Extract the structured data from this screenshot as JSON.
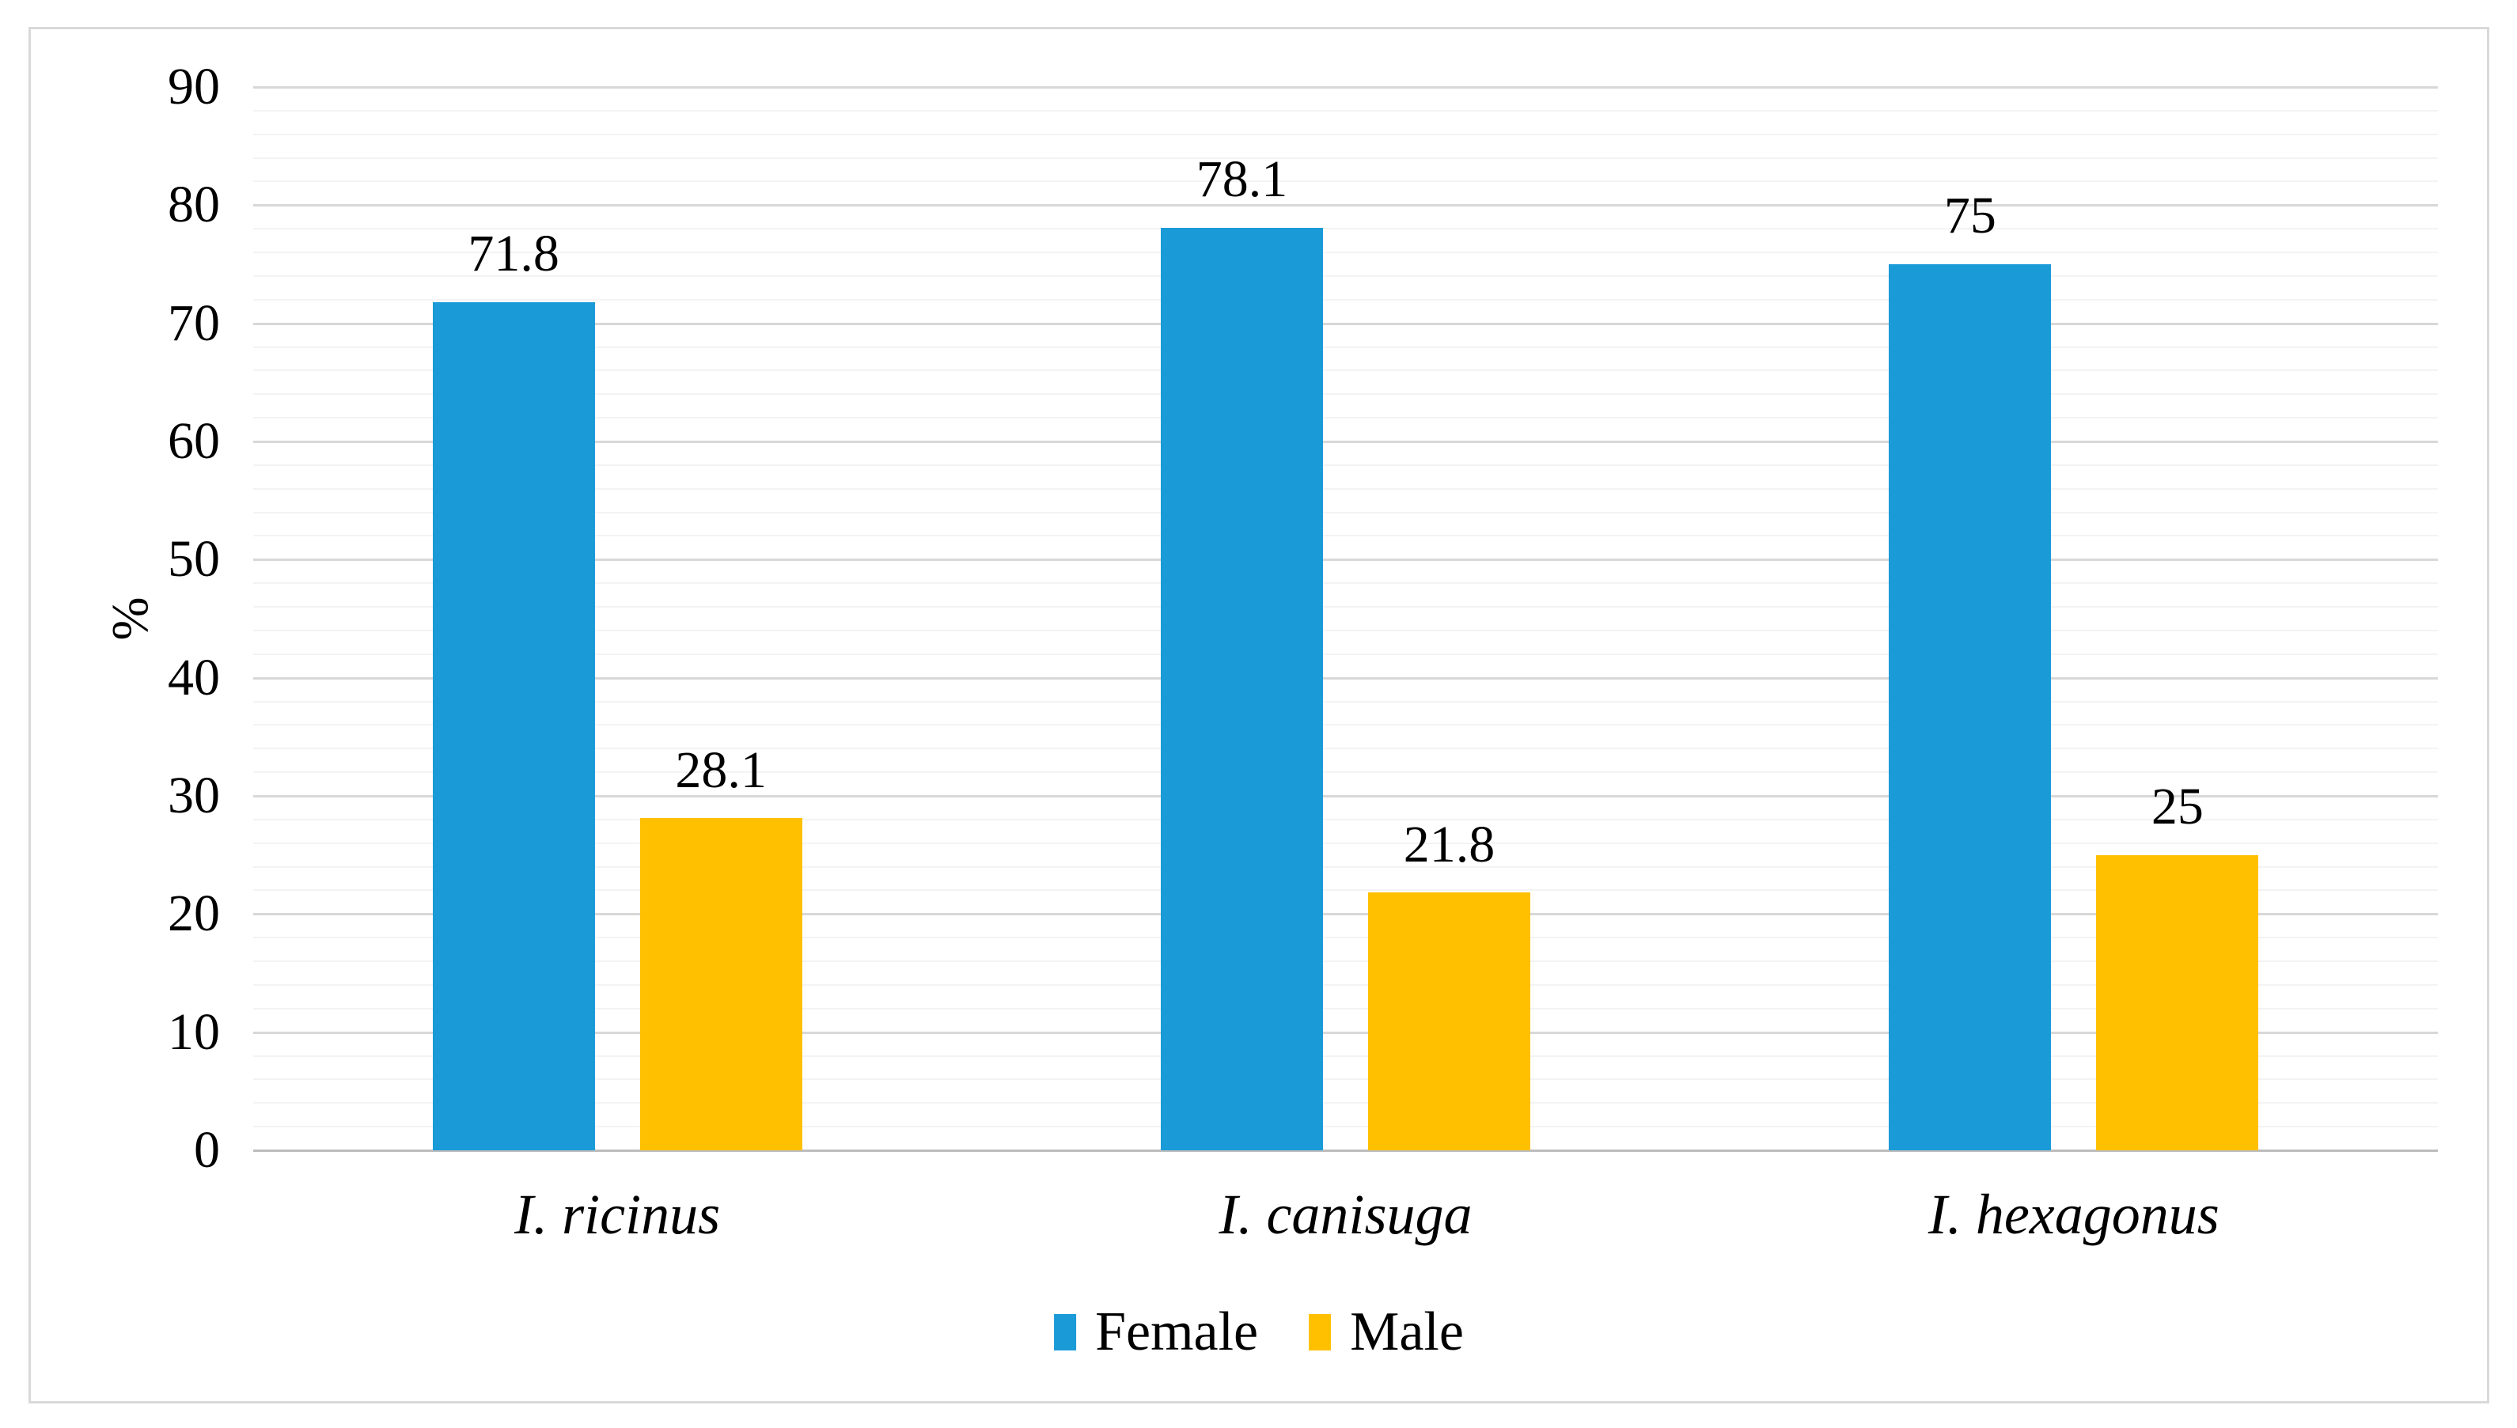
{
  "figure": {
    "background_color": "#ffffff",
    "frame_border_color": "#d9d9d9"
  },
  "chart_data": {
    "type": "bar",
    "title": "",
    "xlabel": "",
    "ylabel": "%",
    "categories": [
      "I. ricinus",
      "I. canisuga",
      "I. hexagonus"
    ],
    "series": [
      {
        "name": "Female",
        "color": "#1a9bd8",
        "values": [
          71.8,
          78.1,
          75
        ]
      },
      {
        "name": "Male",
        "color": "#ffc000",
        "values": [
          28.1,
          21.8,
          25
        ]
      }
    ],
    "value_labels": {
      "Female": [
        "71.8",
        "78.1",
        "75"
      ],
      "Male": [
        "28.1",
        "21.8",
        "25"
      ]
    },
    "ylim": [
      0,
      90
    ],
    "ytick_step": 10,
    "ytick_labels": [
      "0",
      "10",
      "20",
      "30",
      "40",
      "50",
      "60",
      "70",
      "80",
      "90"
    ],
    "minor_gridline_step": 2,
    "grid": {
      "major_color": "#d8d8d8",
      "minor_color": "#f3f3f3",
      "axis_line_color": "#bdbdbd",
      "horizontal_gridlines": true
    },
    "legend": {
      "position": "bottom",
      "entries": [
        "Female",
        "Male"
      ]
    }
  }
}
